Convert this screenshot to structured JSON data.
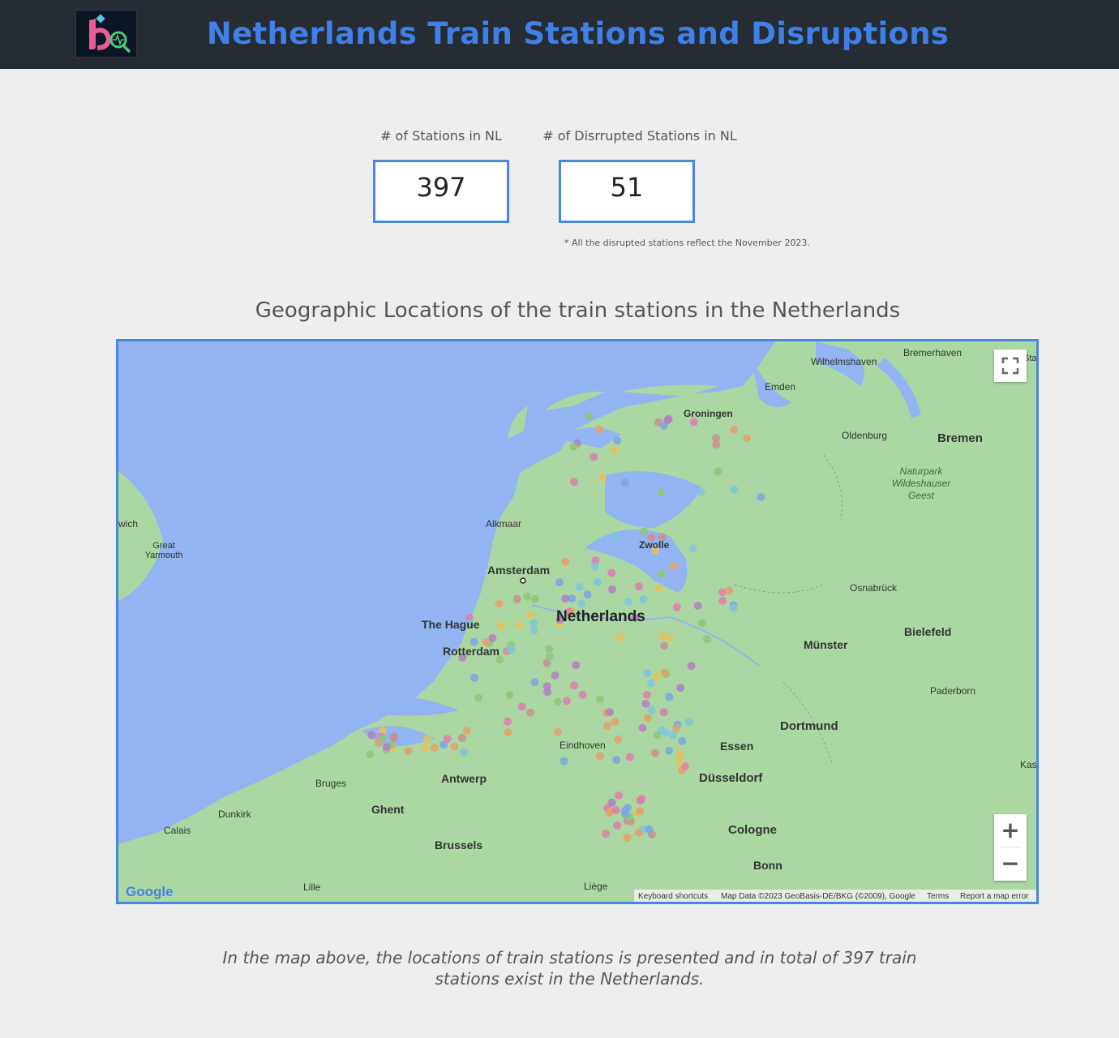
{
  "header": {
    "title": "Netherlands Train Stations and Disruptions",
    "logo_alt": "bq"
  },
  "kpis": [
    {
      "label": "# of  Stations in NL",
      "value": "397"
    },
    {
      "label": "# of Disrrupted Stations in NL",
      "value": "51"
    }
  ],
  "note": "* All the disrupted stations reflect the November 2023.",
  "map": {
    "title": "Geographic Locations of the train stations in the Netherlands",
    "labels": {
      "amsterdam": "Amsterdam",
      "the_hague": "The Hague",
      "rotterdam": "Rotterdam",
      "netherlands": "Netherlands",
      "groningen": "Groningen",
      "zwolle": "Zwolle",
      "alkmaar": "Alkmaar",
      "eindhoven": "Eindhoven",
      "antwerp": "Antwerp",
      "ghent": "Ghent",
      "brussels": "Brussels",
      "bruges": "Bruges",
      "dunkirk": "Dunkirk",
      "calais": "Calais",
      "lille": "Lille",
      "liege": "Liège",
      "essen": "Essen",
      "dusseldorf": "Düsseldorf",
      "cologne": "Cologne",
      "bonn": "Bonn",
      "dortmund": "Dortmund",
      "munster": "Münster",
      "bielefeld": "Bielefeld",
      "paderborn": "Paderborn",
      "osnabruck": "Osnabrück",
      "bremen": "Bremen",
      "oldenburg": "Oldenburg",
      "emden": "Emden",
      "wilhelmshaven": "Wilhelmshaven",
      "bremerhaven": "Bremerhaven",
      "naturpark": "Naturpark",
      "wildeshauser": "Wildeshauser",
      "geest": "Geest",
      "great": "Great",
      "yarmouth": "Yarmouth",
      "wich": "wich",
      "sta": "Sta",
      "kas": "Kas"
    },
    "google": "Google",
    "attribution": {
      "shortcuts": "Keyboard shortcuts",
      "data": "Map Data ©2023 GeoBasis-DE/BKG (©2009), Google",
      "terms": "Terms",
      "report": "Report a map error"
    },
    "controls": {
      "zoom_in": "+",
      "zoom_out": "−",
      "fullscreen_icon": "fullscreen-icon"
    }
  },
  "caption": "In the map above, the locations of train stations is presented and in total of 397 train stations exist in the Netherlands.",
  "colors": {
    "accent": "#3f7fe6",
    "header_bg": "#252c33",
    "water": "#92b4f2",
    "land": "#abd8a2"
  }
}
